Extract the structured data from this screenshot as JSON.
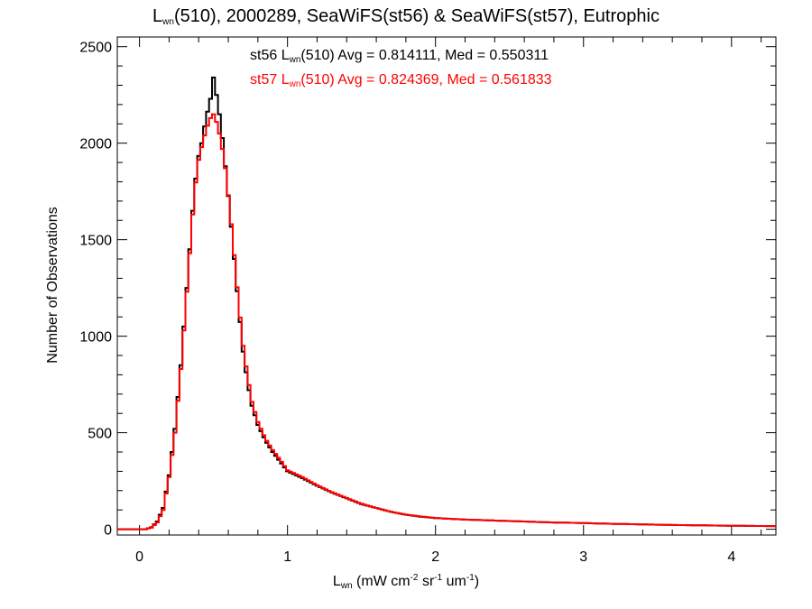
{
  "chart_data": {
    "type": "line",
    "title": {
      "pre": "L",
      "sub": "wn",
      "post": "(510), 2000289, SeaWiFS(st56) & SeaWiFS(st57), Eutrophic"
    },
    "xlabel": {
      "pre": "L",
      "sub": "wn",
      "p1": " (mW cm",
      "sup1": "-2",
      "p2": " sr",
      "sup2": "-1",
      "p3": " um",
      "sup3": "-1",
      "p4": ")"
    },
    "ylabel": "Number of Observations",
    "xlim": [
      -0.15,
      4.3
    ],
    "ylim": [
      -30,
      2550
    ],
    "xticks": [
      "0",
      "1",
      "2",
      "3",
      "4"
    ],
    "yticks": [
      "0",
      "500",
      "1000",
      "1500",
      "2000",
      "2500"
    ],
    "xtick_values": [
      0,
      1,
      2,
      3,
      4
    ],
    "ytick_values": [
      0,
      500,
      1000,
      1500,
      2000,
      2500
    ],
    "legend": [
      {
        "pre": "st56 L",
        "sub": "wn",
        "post": "(510) Avg = 0.814111, Med = 0.550311",
        "color": "#000000"
      },
      {
        "pre": "st57 L",
        "sub": "wn",
        "post": "(510) Avg = 0.824369, Med = 0.561833",
        "color": "#ff0000"
      }
    ],
    "series": [
      {
        "color": "#000000",
        "points": [
          [
            -0.15,
            0
          ],
          [
            0.04,
            0
          ],
          [
            0.08,
            10
          ],
          [
            0.12,
            40
          ],
          [
            0.16,
            110
          ],
          [
            0.2,
            280
          ],
          [
            0.24,
            520
          ],
          [
            0.28,
            850
          ],
          [
            0.32,
            1250
          ],
          [
            0.36,
            1650
          ],
          [
            0.39,
            1900
          ],
          [
            0.42,
            2000
          ],
          [
            0.45,
            2130
          ],
          [
            0.48,
            2230
          ],
          [
            0.5,
            2340
          ],
          [
            0.52,
            2250
          ],
          [
            0.55,
            2100
          ],
          [
            0.58,
            1880
          ],
          [
            0.61,
            1650
          ],
          [
            0.64,
            1400
          ],
          [
            0.67,
            1150
          ],
          [
            0.7,
            920
          ],
          [
            0.73,
            760
          ],
          [
            0.76,
            640
          ],
          [
            0.8,
            540
          ],
          [
            0.85,
            460
          ],
          [
            0.9,
            400
          ],
          [
            0.95,
            350
          ],
          [
            1.0,
            300
          ],
          [
            1.1,
            265
          ],
          [
            1.2,
            225
          ],
          [
            1.3,
            190
          ],
          [
            1.4,
            160
          ],
          [
            1.5,
            130
          ],
          [
            1.6,
            110
          ],
          [
            1.7,
            90
          ],
          [
            1.8,
            75
          ],
          [
            1.9,
            65
          ],
          [
            2.0,
            58
          ],
          [
            2.2,
            50
          ],
          [
            2.4,
            45
          ],
          [
            2.6,
            40
          ],
          [
            2.8,
            35
          ],
          [
            3.0,
            32
          ],
          [
            3.2,
            28
          ],
          [
            3.4,
            25
          ],
          [
            3.6,
            22
          ],
          [
            3.8,
            20
          ],
          [
            4.0,
            18
          ],
          [
            4.3,
            16
          ]
        ]
      },
      {
        "color": "#ff0000",
        "points": [
          [
            -0.15,
            0
          ],
          [
            0.04,
            0
          ],
          [
            0.08,
            8
          ],
          [
            0.12,
            35
          ],
          [
            0.16,
            100
          ],
          [
            0.2,
            270
          ],
          [
            0.24,
            500
          ],
          [
            0.28,
            830
          ],
          [
            0.32,
            1230
          ],
          [
            0.36,
            1630
          ],
          [
            0.39,
            1880
          ],
          [
            0.42,
            1980
          ],
          [
            0.45,
            2070
          ],
          [
            0.48,
            2130
          ],
          [
            0.5,
            2150
          ],
          [
            0.52,
            2110
          ],
          [
            0.55,
            2020
          ],
          [
            0.58,
            1870
          ],
          [
            0.61,
            1660
          ],
          [
            0.64,
            1420
          ],
          [
            0.67,
            1170
          ],
          [
            0.7,
            950
          ],
          [
            0.73,
            790
          ],
          [
            0.76,
            660
          ],
          [
            0.8,
            555
          ],
          [
            0.85,
            470
          ],
          [
            0.9,
            410
          ],
          [
            0.95,
            360
          ],
          [
            1.0,
            305
          ],
          [
            1.1,
            270
          ],
          [
            1.2,
            228
          ],
          [
            1.3,
            192
          ],
          [
            1.4,
            162
          ],
          [
            1.5,
            132
          ],
          [
            1.6,
            110
          ],
          [
            1.7,
            90
          ],
          [
            1.8,
            76
          ],
          [
            1.9,
            66
          ],
          [
            2.0,
            58
          ],
          [
            2.2,
            50
          ],
          [
            2.4,
            45
          ],
          [
            2.6,
            40
          ],
          [
            2.8,
            35
          ],
          [
            3.0,
            32
          ],
          [
            3.2,
            28
          ],
          [
            3.4,
            25
          ],
          [
            3.6,
            22
          ],
          [
            3.8,
            20
          ],
          [
            4.0,
            18
          ],
          [
            4.3,
            16
          ]
        ]
      }
    ]
  }
}
